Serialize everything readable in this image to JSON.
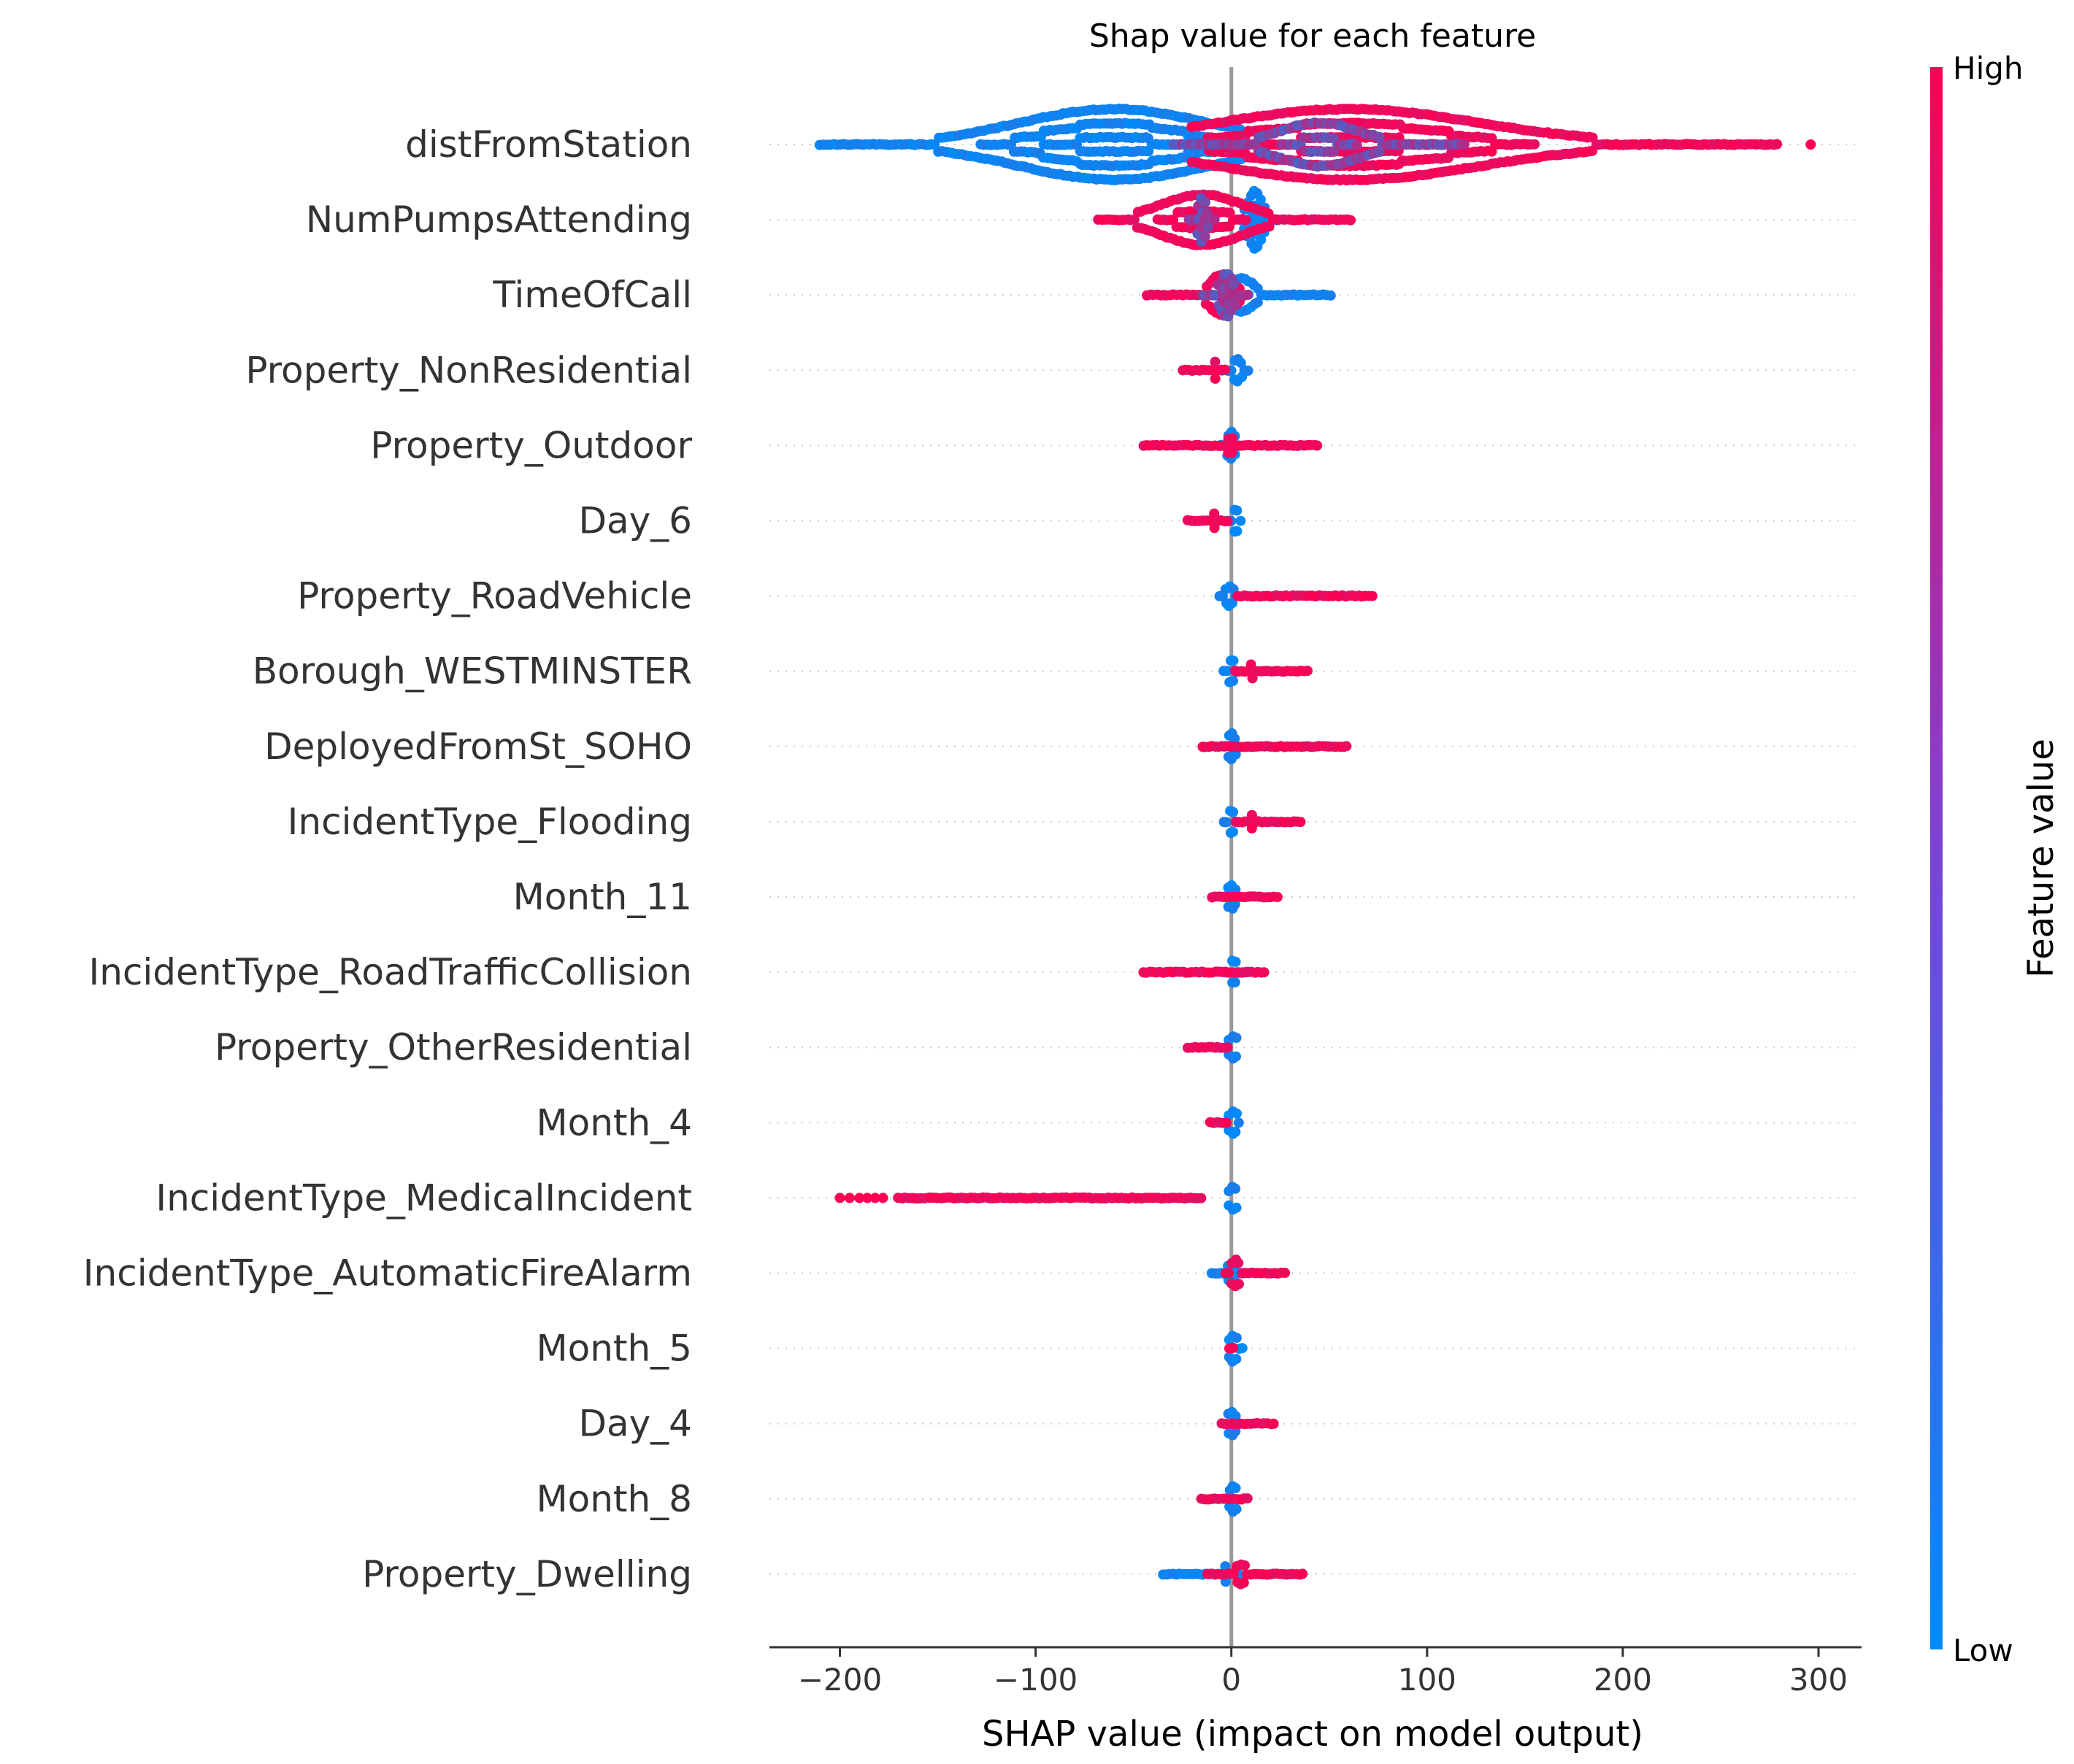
{
  "chart_data": {
    "type": "scatter",
    "title": "Shap value for each feature",
    "xlabel": "SHAP value (impact on model output)",
    "xlim": [
      -236,
      322
    ],
    "xticks": [
      -200,
      -100,
      0,
      100,
      200,
      300
    ],
    "xtick_labels": [
      "−200",
      "−100",
      "0",
      "100",
      "200",
      "300"
    ],
    "colorbar": {
      "label": "Feature value",
      "high_label": "High",
      "low_label": "Low",
      "low_color": "#008bfb",
      "high_color": "#ff0052"
    },
    "features": [
      {
        "name": "distFromStation",
        "low": {
          "range": [
            -210,
            5
          ],
          "peak": -60,
          "spread": 1.0
        },
        "high": {
          "range": [
            -20,
            280
          ],
          "peak": 60,
          "spread": 1.0
        },
        "mid_range": [
          -30,
          120
        ],
        "extra_points": [
          296
        ]
      },
      {
        "name": "NumPumpsAttending",
        "low": {
          "range": [
            5,
            25
          ],
          "peak": 12,
          "spread": 0.8
        },
        "high": {
          "range": [
            -68,
            62
          ],
          "peak": -15,
          "spread": 0.7
        },
        "mid_range": [
          -22,
          -8
        ],
        "extra_points": []
      },
      {
        "name": "TimeOfCall",
        "low": {
          "range": [
            -10,
            52
          ],
          "peak": 5,
          "spread": 0.45
        },
        "high": {
          "range": [
            -43,
            5
          ],
          "peak": -5,
          "spread": 0.55
        },
        "mid_range": [
          -15,
          10
        ],
        "extra_points": []
      },
      {
        "name": "Property_NonResidential",
        "low": {
          "range": [
            -5,
            10
          ],
          "peak": 3,
          "spread": 0.3
        },
        "high": {
          "range": [
            -25,
            -3
          ],
          "peak": -8,
          "spread": 0.2
        },
        "mid_range": [],
        "extra_points": []
      },
      {
        "name": "Property_Outdoor",
        "low": {
          "range": [
            -5,
            5
          ],
          "peak": 0,
          "spread": 0.35
        },
        "high": {
          "range": [
            -45,
            44
          ],
          "peak": 0,
          "spread": 0.18
        },
        "mid_range": [],
        "extra_points": []
      },
      {
        "name": "Day_6",
        "low": {
          "range": [
            -2,
            6
          ],
          "peak": 2,
          "spread": 0.3
        },
        "high": {
          "range": [
            -22,
            -1
          ],
          "peak": -8,
          "spread": 0.18
        },
        "mid_range": [],
        "extra_points": []
      },
      {
        "name": "Property_RoadVehicle",
        "low": {
          "range": [
            -6,
            3
          ],
          "peak": -1,
          "spread": 0.25
        },
        "high": {
          "range": [
            3,
            72
          ],
          "peak": 10,
          "spread": 0.15
        },
        "mid_range": [],
        "extra_points": []
      },
      {
        "name": "Borough_WESTMINSTER",
        "low": {
          "range": [
            -4,
            3
          ],
          "peak": 0,
          "spread": 0.3
        },
        "high": {
          "range": [
            2,
            39
          ],
          "peak": 10,
          "spread": 0.18
        },
        "mid_range": [],
        "extra_points": []
      },
      {
        "name": "DeployedFromSt_SOHO",
        "low": {
          "range": [
            -3,
            3
          ],
          "peak": 0,
          "spread": 0.35
        },
        "high": {
          "range": [
            -15,
            60
          ],
          "peak": 10,
          "spread": 0.15
        },
        "mid_range": [],
        "extra_points": []
      },
      {
        "name": "IncidentType_Flooding",
        "low": {
          "range": [
            -4,
            3
          ],
          "peak": 0,
          "spread": 0.3
        },
        "high": {
          "range": [
            2,
            37
          ],
          "peak": 10,
          "spread": 0.18
        },
        "mid_range": [],
        "extra_points": []
      },
      {
        "name": "Month_11",
        "low": {
          "range": [
            -3,
            4
          ],
          "peak": 0,
          "spread": 0.3
        },
        "high": {
          "range": [
            -10,
            24
          ],
          "peak": 5,
          "spread": 0.15
        },
        "mid_range": [],
        "extra_points": []
      },
      {
        "name": "IncidentType_RoadTrafficCollision",
        "low": {
          "range": [
            -3,
            10
          ],
          "peak": 1,
          "spread": 0.3
        },
        "high": {
          "range": [
            -45,
            18
          ],
          "peak": -10,
          "spread": 0.15
        },
        "mid_range": [],
        "extra_points": []
      },
      {
        "name": "Property_OtherResidential",
        "low": {
          "range": [
            -1,
            4
          ],
          "peak": 1,
          "spread": 0.3
        },
        "high": {
          "range": [
            -22,
            -1
          ],
          "peak": -8,
          "spread": 0.15
        },
        "mid_range": [],
        "extra_points": []
      },
      {
        "name": "Month_4",
        "low": {
          "range": [
            -1,
            5
          ],
          "peak": 1,
          "spread": 0.3
        },
        "high": {
          "range": [
            -11,
            -1
          ],
          "peak": -5,
          "spread": 0.12
        },
        "mid_range": [],
        "extra_points": []
      },
      {
        "name": "IncidentType_MedicalIncident",
        "low": {
          "range": [
            -1,
            4
          ],
          "peak": 1,
          "spread": 0.3
        },
        "high": {
          "range": [
            -170,
            -15
          ],
          "peak": -50,
          "spread": 0.12
        },
        "mid_range": [],
        "extra_points": [
          -200,
          -195,
          -190,
          -186,
          -182,
          -178
        ]
      },
      {
        "name": "IncidentType_AutomaticFireAlarm",
        "low": {
          "range": [
            -10,
            8
          ],
          "peak": 0,
          "spread": 0.25
        },
        "high": {
          "range": [
            -3,
            28
          ],
          "peak": 2,
          "spread": 0.35
        },
        "mid_range": [],
        "extra_points": []
      },
      {
        "name": "Month_5",
        "low": {
          "range": [
            -1,
            6
          ],
          "peak": 1,
          "spread": 0.35
        },
        "high": {
          "range": [
            -1,
            2
          ],
          "peak": 0,
          "spread": 0.1
        },
        "mid_range": [],
        "extra_points": []
      },
      {
        "name": "Day_4",
        "low": {
          "range": [
            -3,
            3
          ],
          "peak": 0,
          "spread": 0.3
        },
        "high": {
          "range": [
            -5,
            22
          ],
          "peak": 5,
          "spread": 0.15
        },
        "mid_range": [],
        "extra_points": []
      },
      {
        "name": "Month_8",
        "low": {
          "range": [
            -1,
            4
          ],
          "peak": 1,
          "spread": 0.35
        },
        "high": {
          "range": [
            -15,
            10
          ],
          "peak": -5,
          "spread": 0.15
        },
        "mid_range": [],
        "extra_points": []
      },
      {
        "name": "Property_Dwelling",
        "low": {
          "range": [
            -35,
            5
          ],
          "peak": -3,
          "spread": 0.2
        },
        "high": {
          "range": [
            -12,
            37
          ],
          "peak": 5,
          "spread": 0.25
        },
        "mid_range": [],
        "extra_points": []
      }
    ]
  }
}
